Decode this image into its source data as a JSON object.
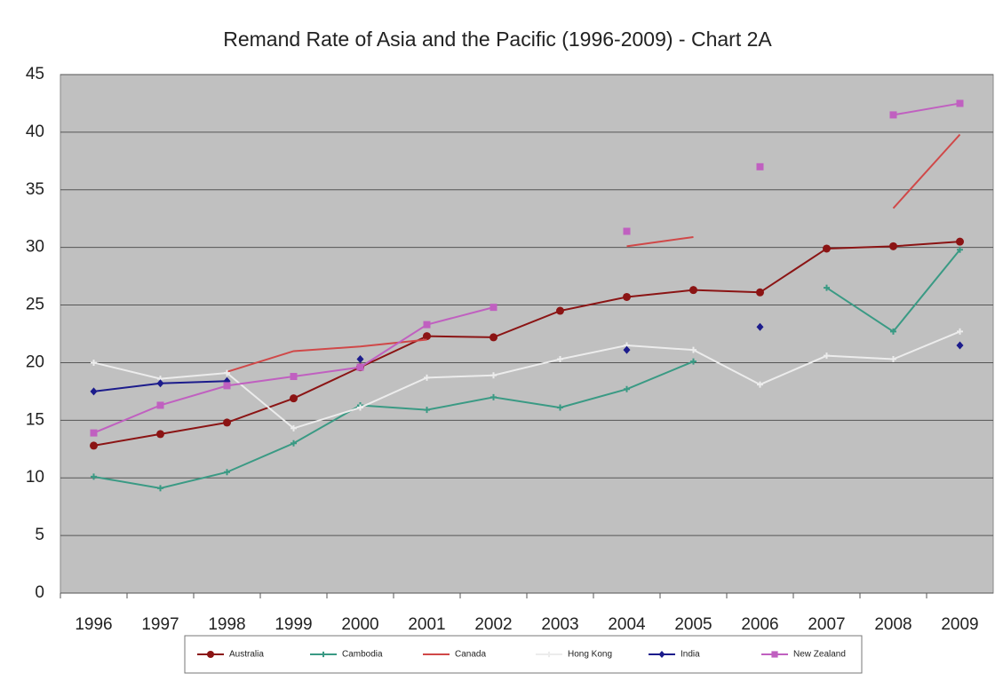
{
  "chart_data": {
    "type": "line",
    "title": "Remand Rate of Asia and the Pacific (1996-2009) - Chart 2A",
    "categories": [
      "1996",
      "1997",
      "1998",
      "1999",
      "2000",
      "2001",
      "2002",
      "2003",
      "2004",
      "2005",
      "2006",
      "2007",
      "2008",
      "2009"
    ],
    "ylim": [
      0,
      45
    ],
    "yticks": [
      0,
      5,
      10,
      15,
      20,
      25,
      30,
      35,
      40,
      45
    ],
    "grid": true,
    "legend": "bottom",
    "series": [
      {
        "name": "Australia",
        "color": "#8b1414",
        "marker": "circle",
        "values": [
          12.8,
          13.8,
          14.8,
          16.9,
          19.6,
          22.3,
          22.2,
          24.5,
          25.7,
          26.3,
          26.1,
          29.9,
          30.1,
          30.5
        ]
      },
      {
        "name": "Cambodia",
        "color": "#3a9a84",
        "marker": "plus",
        "values": [
          10.1,
          9.1,
          10.5,
          13.0,
          16.3,
          15.9,
          17.0,
          16.1,
          17.7,
          20.1,
          null,
          26.5,
          22.7,
          29.8
        ]
      },
      {
        "name": "Canada",
        "color": "#d04848",
        "marker": "none",
        "values": [
          null,
          null,
          19.2,
          21.0,
          21.4,
          22.0,
          null,
          null,
          30.1,
          30.9,
          null,
          null,
          33.4,
          39.8
        ]
      },
      {
        "name": "Hong Kong",
        "color": "#ececec",
        "marker": "plus",
        "values": [
          20.0,
          18.6,
          19.1,
          14.3,
          16.1,
          18.7,
          18.9,
          20.3,
          21.5,
          21.1,
          18.1,
          20.6,
          20.3,
          22.7
        ]
      },
      {
        "name": "India",
        "color": "#1c1c8c",
        "marker": "diamond",
        "values": [
          17.5,
          18.2,
          18.4,
          null,
          20.3,
          null,
          null,
          null,
          21.1,
          null,
          23.1,
          null,
          null,
          21.5
        ]
      },
      {
        "name": "New Zealand",
        "color": "#c060c0",
        "marker": "square",
        "values": [
          13.9,
          16.3,
          18.0,
          18.8,
          19.6,
          23.3,
          24.8,
          null,
          31.4,
          null,
          37.0,
          null,
          41.5,
          42.5
        ]
      }
    ]
  }
}
